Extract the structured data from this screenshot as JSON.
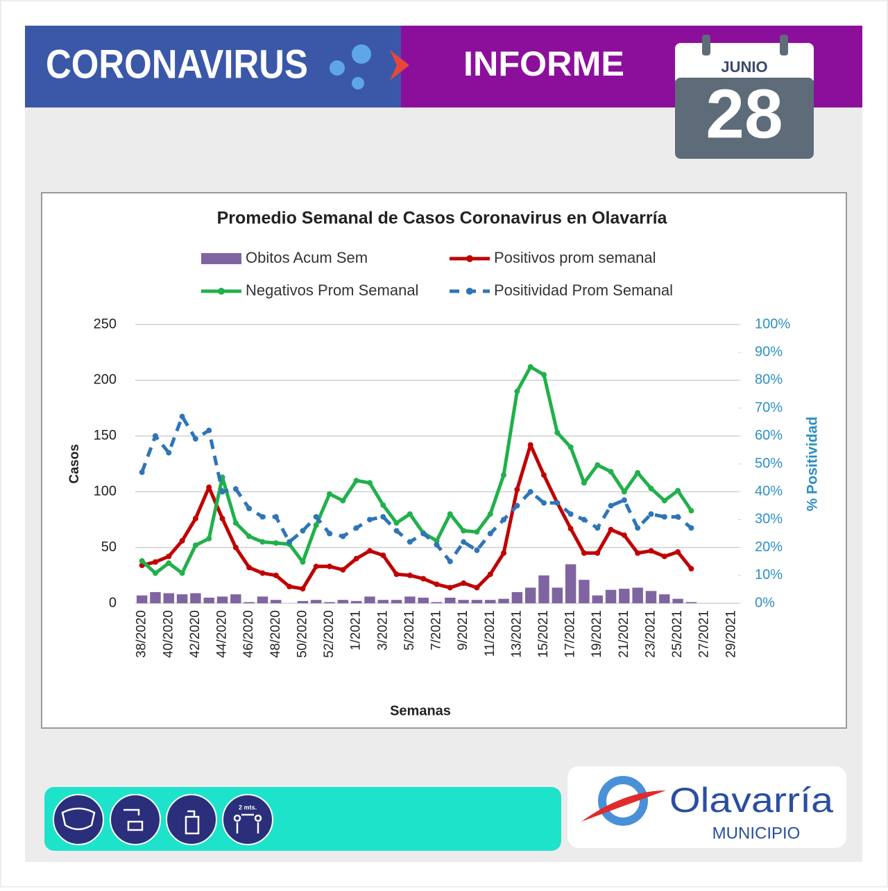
{
  "header": {
    "title": "CORONAVIRUS",
    "subtitle": "INFORME",
    "month": "JUNIO",
    "day": "28"
  },
  "chart_data": {
    "type": "bar",
    "title": "Promedio Semanal de Casos Coronavirus en Olavarría",
    "y_label": "Casos",
    "y2_label": "% Positividad",
    "x_label": "Semanas",
    "categories": [
      "38/2020",
      null,
      "40/2020",
      null,
      "42/2020",
      null,
      "44/2020",
      null,
      "46/2020",
      null,
      "48/2020",
      null,
      "50/2020",
      null,
      "52/2020",
      null,
      "1/2021",
      null,
      "3/2021",
      null,
      "5/2021",
      null,
      "7/2021",
      null,
      "9/2021",
      null,
      "11/2021",
      null,
      "13/2021",
      null,
      "15/2021",
      null,
      "17/2021",
      null,
      "19/2021",
      null,
      "21/2021",
      null,
      "23/2021",
      null,
      "25/2021",
      null,
      "27/2021",
      null,
      "29/2021"
    ],
    "ylim": [
      0,
      250
    ],
    "yticks": [
      0,
      50,
      100,
      150,
      200,
      250
    ],
    "y2lim": [
      0,
      100
    ],
    "y2ticks": [
      {
        "value": 0,
        "label": "0%"
      },
      {
        "value": 10,
        "label": "10%"
      },
      {
        "value": 20,
        "label": "20%"
      },
      {
        "value": 30,
        "label": "30%"
      },
      {
        "value": 40,
        "label": "40%"
      },
      {
        "value": 50,
        "label": "50%"
      },
      {
        "value": 60,
        "label": "60%"
      },
      {
        "value": 70,
        "label": "70%"
      },
      {
        "value": 80,
        "label": "80%"
      },
      {
        "value": 90,
        "label": "90%"
      },
      {
        "value": 100,
        "label": "100%"
      }
    ],
    "grid": true,
    "series": [
      {
        "name": "Obitos Acum Sem",
        "type": "bar",
        "color": "#8064a2",
        "values": [
          7,
          10,
          9,
          8,
          9,
          5,
          6,
          8,
          1,
          6,
          3,
          0,
          2,
          3,
          1,
          3,
          2,
          6,
          3,
          3,
          6,
          5,
          1,
          5,
          3,
          3,
          3,
          4,
          10,
          14,
          25,
          14,
          35,
          21,
          7,
          12,
          13,
          14,
          11,
          8,
          4,
          1,
          null,
          null,
          null
        ]
      },
      {
        "name": "Positivos prom semanal",
        "type": "line",
        "color": "#c00000",
        "values": [
          34,
          37,
          42,
          56,
          76,
          104,
          76,
          50,
          32,
          27,
          25,
          15,
          13,
          33,
          33,
          30,
          40,
          47,
          43,
          26,
          25,
          22,
          17,
          14,
          18,
          14,
          26,
          45,
          102,
          142,
          115,
          90,
          67,
          45,
          45,
          66,
          61,
          45,
          47,
          42,
          46,
          31,
          null,
          null,
          null
        ]
      },
      {
        "name": "Negativos Prom Semanal",
        "type": "line",
        "color": "#21b04b",
        "values": [
          38,
          27,
          36,
          27,
          52,
          58,
          113,
          72,
          60,
          55,
          54,
          53,
          37,
          70,
          98,
          92,
          110,
          108,
          88,
          72,
          80,
          63,
          56,
          80,
          65,
          64,
          80,
          115,
          190,
          212,
          205,
          153,
          140,
          108,
          124,
          118,
          100,
          117,
          103,
          92,
          101,
          83,
          null,
          null,
          null
        ]
      },
      {
        "name": "Positividad Prom Semanal",
        "type": "line",
        "color": "#2e75b6",
        "axis": "y2",
        "dashed": true,
        "values": [
          47,
          60,
          54,
          67,
          59,
          62,
          40,
          41,
          34,
          31,
          31,
          22,
          26,
          31,
          25,
          24,
          27,
          30,
          31,
          26,
          22,
          25,
          21,
          15,
          22,
          19,
          25,
          30,
          35,
          40,
          36,
          36,
          32,
          30,
          27,
          35,
          37,
          27,
          32,
          31,
          31,
          27,
          null,
          null,
          null
        ]
      }
    ]
  },
  "footer": {
    "distance": "2 mts.",
    "logo_name": "Olavarría",
    "logo_sub": "MUNICIPIO"
  }
}
